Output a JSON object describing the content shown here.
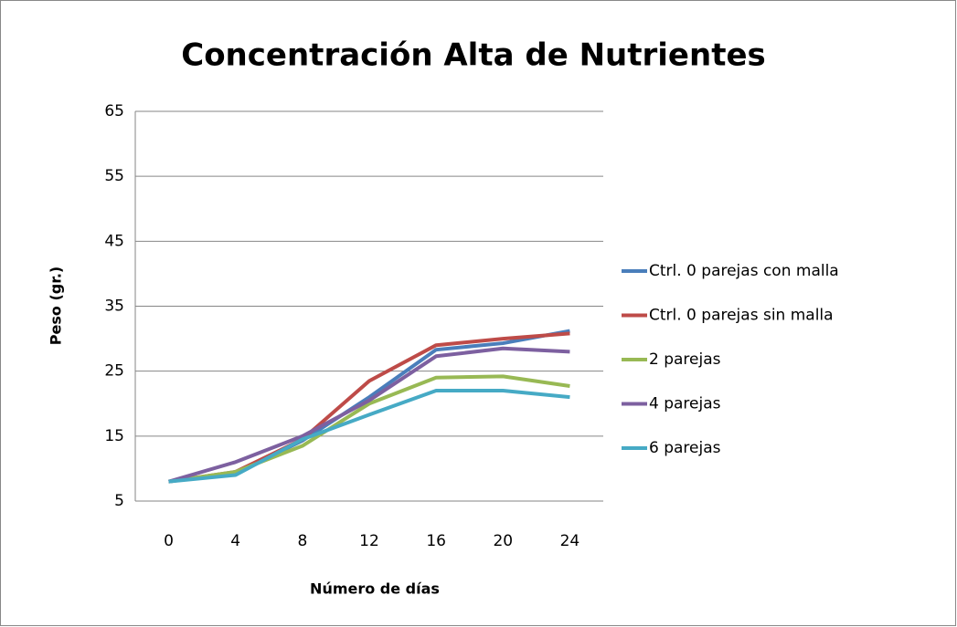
{
  "chart_data": {
    "type": "line",
    "title": "Concentración Alta de Nutrientes",
    "x_label": "Número de días",
    "y_label": "Peso (gr.)",
    "categories": [
      "0",
      "4",
      "8",
      "12",
      "16",
      "20",
      "24"
    ],
    "series": [
      {
        "name": "Ctrl. 0 parejas con malla",
        "color": "#4a7ebb",
        "values": [
          8,
          9.3,
          14.3,
          21,
          28.3,
          29.3,
          31.2
        ]
      },
      {
        "name": "Ctrl. 0 parejas sin malla",
        "color": "#be4b48",
        "values": [
          8,
          9.5,
          14.5,
          23.5,
          29,
          30,
          30.8
        ]
      },
      {
        "name": "2 parejas",
        "color": "#98b954",
        "values": [
          8,
          9.5,
          13.5,
          20,
          24,
          24.2,
          22.7
        ]
      },
      {
        "name": "4 parejas",
        "color": "#7d60a0",
        "values": [
          8,
          11,
          15,
          20.5,
          27.3,
          28.5,
          28
        ]
      },
      {
        "name": "6 parejas",
        "color": "#46aac5",
        "values": [
          8,
          9,
          14.5,
          18.3,
          22,
          22,
          21
        ]
      }
    ],
    "ylim": [
      5,
      65
    ],
    "yticks": [
      5,
      15,
      25,
      35,
      45,
      55,
      65
    ],
    "grid": true,
    "legend": "right"
  }
}
